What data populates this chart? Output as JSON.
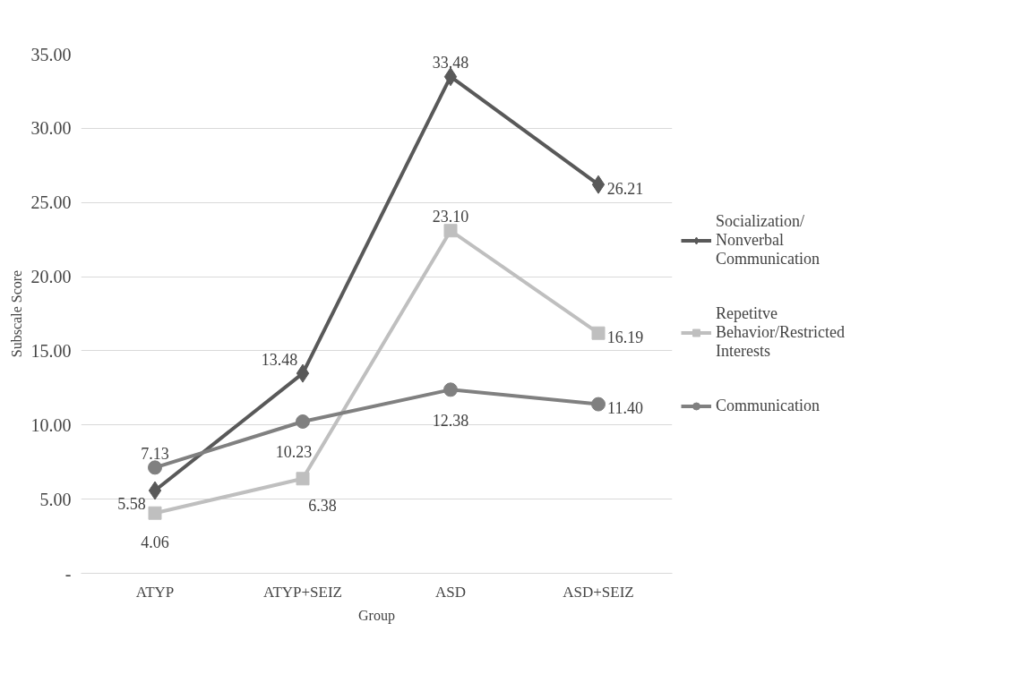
{
  "chart_data": {
    "type": "line",
    "xlabel": "Group",
    "ylabel": "Subscale Score",
    "categories": [
      "ATYP",
      "ATYP+SEIZ",
      "ASD",
      "ASD+SEIZ"
    ],
    "ylim": [
      0,
      35
    ],
    "yticks": [
      {
        "value": 0,
        "label": "-"
      },
      {
        "value": 5,
        "label": "5.00"
      },
      {
        "value": 10,
        "label": "10.00"
      },
      {
        "value": 15,
        "label": "15.00"
      },
      {
        "value": 20,
        "label": "20.00"
      },
      {
        "value": 25,
        "label": "25.00"
      },
      {
        "value": 30,
        "label": "30.00"
      },
      {
        "value": 35,
        "label": "35.00"
      }
    ],
    "grid": "y",
    "legend": "right",
    "line_style": "solid",
    "series": [
      {
        "name": "Socialization/ Nonverbal Communication",
        "color": "#595959",
        "marker": "diamond",
        "values": [
          5.58,
          13.48,
          33.48,
          26.21
        ],
        "value_labels": [
          "5.58",
          "13.48",
          "33.48",
          "26.21"
        ]
      },
      {
        "name": "Repetitve Behavior/Restricted Interests",
        "color": "#bfbfbf",
        "marker": "square",
        "values": [
          4.06,
          6.38,
          23.1,
          16.19
        ],
        "value_labels": [
          "4.06",
          "6.38",
          "23.10",
          "16.19"
        ]
      },
      {
        "name": "Communication",
        "color": "#808080",
        "marker": "circle",
        "values": [
          7.13,
          10.23,
          12.38,
          11.4
        ],
        "value_labels": [
          "7.13",
          "10.23",
          "12.38",
          "11.40"
        ]
      }
    ]
  }
}
